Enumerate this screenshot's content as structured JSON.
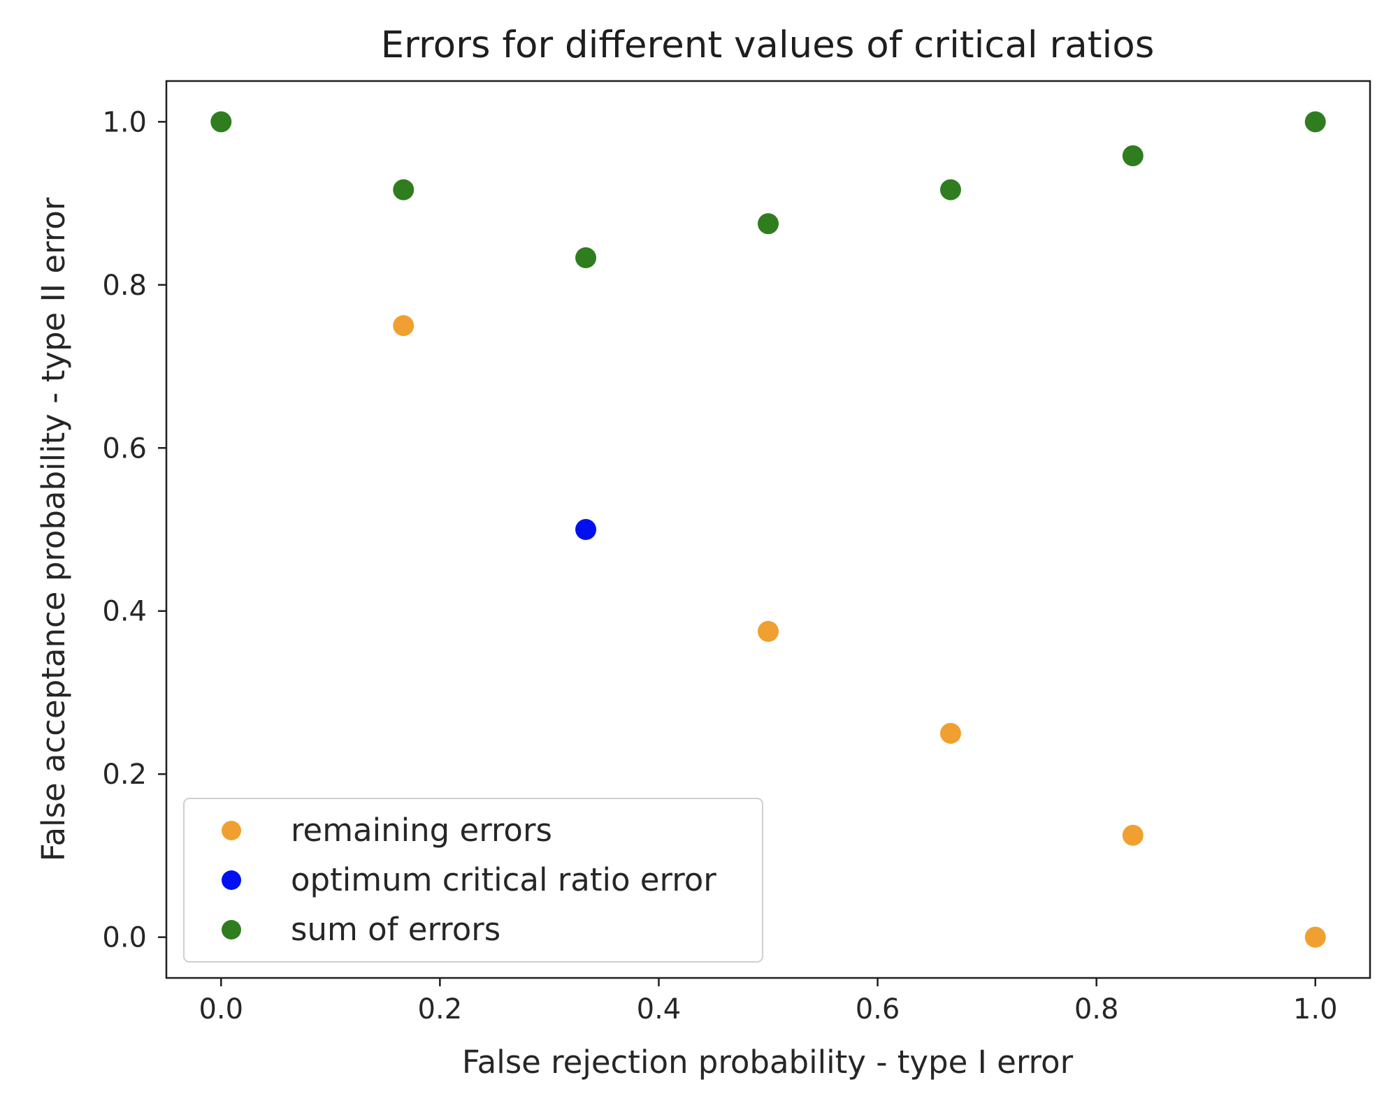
{
  "chart_data": {
    "type": "scatter",
    "title": "Errors for different values of critical ratios",
    "xlabel": "False rejection probability - type I error",
    "ylabel": "False acceptance probability - type II error",
    "xlim": [
      -0.05,
      1.05
    ],
    "ylim": [
      -0.05,
      1.05
    ],
    "x_ticks": [
      0.0,
      0.2,
      0.4,
      0.6,
      0.8,
      1.0
    ],
    "y_ticks": [
      0.0,
      0.2,
      0.4,
      0.6,
      0.8,
      1.0
    ],
    "x_tick_labels": [
      "0.0",
      "0.2",
      "0.4",
      "0.6",
      "0.8",
      "1.0"
    ],
    "y_tick_labels": [
      "0.0",
      "0.2",
      "0.4",
      "0.6",
      "0.8",
      "1.0"
    ],
    "grid": false,
    "legend_position": "lower-left",
    "series": [
      {
        "name": "remaining errors",
        "color": "#f0a030",
        "points": [
          {
            "x": 0.1667,
            "y": 0.75
          },
          {
            "x": 0.5,
            "y": 0.375
          },
          {
            "x": 0.6667,
            "y": 0.25
          },
          {
            "x": 0.8333,
            "y": 0.125
          },
          {
            "x": 1.0,
            "y": 0.0
          }
        ]
      },
      {
        "name": "optimum critical ratio error",
        "color": "#0010f0",
        "points": [
          {
            "x": 0.3333,
            "y": 0.5
          }
        ]
      },
      {
        "name": "sum of errors",
        "color": "#2f7d1f",
        "points": [
          {
            "x": 0.0,
            "y": 1.0
          },
          {
            "x": 0.1667,
            "y": 0.9167
          },
          {
            "x": 0.3333,
            "y": 0.8333
          },
          {
            "x": 0.5,
            "y": 0.875
          },
          {
            "x": 0.6667,
            "y": 0.9167
          },
          {
            "x": 0.8333,
            "y": 0.9583
          },
          {
            "x": 1.0,
            "y": 1.0
          }
        ]
      }
    ]
  }
}
